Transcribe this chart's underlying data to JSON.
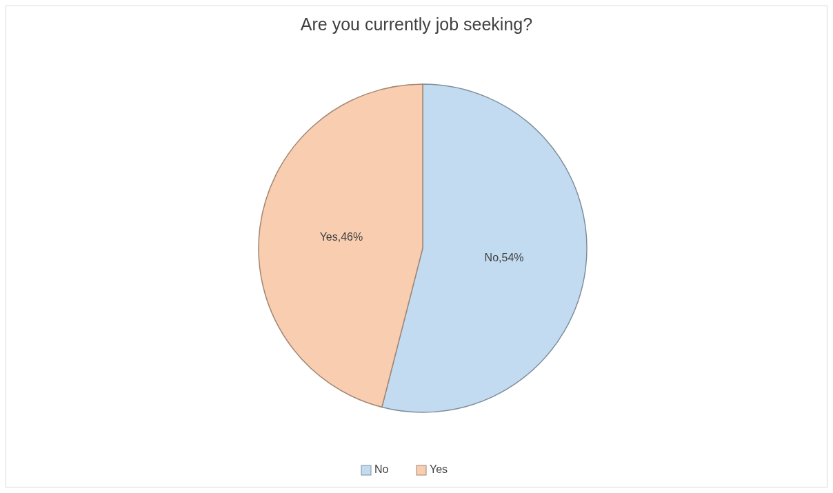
{
  "chart_data": {
    "type": "pie",
    "title": "Are you currently job seeking?",
    "categories": [
      "No",
      "Yes"
    ],
    "values": [
      54,
      46
    ],
    "colors": [
      "#c3dbf0",
      "#f8cdb0"
    ],
    "value_labels": [
      "No,54%",
      "Yes,46%"
    ],
    "legend": "bottom"
  }
}
